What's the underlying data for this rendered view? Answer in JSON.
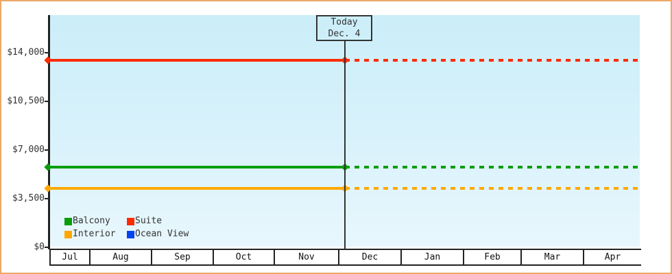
{
  "chart_data": {
    "type": "line",
    "description": "Flat price lines per cabin category over time; solid history left of today marker, dashed projection to the right",
    "y_axis": {
      "tick_labels": [
        "$14,000",
        "$10,500",
        "$7,000",
        "$3,500",
        "$0"
      ],
      "tick_values": [
        14000,
        10500,
        7000,
        3500,
        0
      ],
      "min": 0,
      "max": 14000,
      "grid": false
    },
    "x_axis": {
      "labels": [
        "Jul",
        "Aug",
        "Sep",
        "Oct",
        "Nov",
        "Dec",
        "Jan",
        "Feb",
        "Mar",
        "Apr"
      ]
    },
    "series": [
      {
        "name": "Balcony",
        "color": "#0b9e0b",
        "value": 5770,
        "shown": true
      },
      {
        "name": "Suite",
        "color": "#fe2b00",
        "value": 13450,
        "shown": true
      },
      {
        "name": "Interior",
        "color": "#ffa800",
        "value": 4240,
        "shown": true
      },
      {
        "name": "Ocean View",
        "color": "#0043f0",
        "value": null,
        "shown": false
      }
    ],
    "annotation": {
      "line1": "Today",
      "line2": "Dec. 4"
    },
    "legend_position": "bottom-left",
    "legend_order": [
      "Balcony",
      "Suite",
      "Interior",
      "Ocean View"
    ]
  },
  "colors": {
    "frame_border": "#eda768",
    "plot_bg_top": "#cbeef9",
    "plot_bg_bottom": "#e8f7fd",
    "axis": "#222222",
    "text": "#333333"
  }
}
